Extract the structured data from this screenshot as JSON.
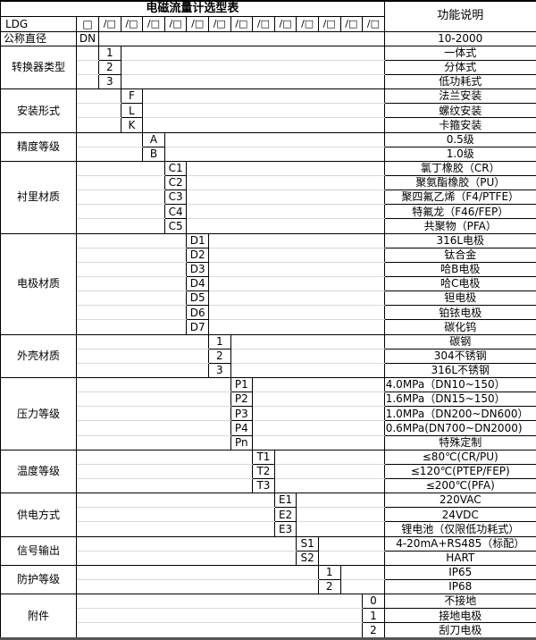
{
  "title": "电磁流量计选型表",
  "right_header": "功能说明",
  "colors": {
    "background": "#ffffff",
    "border": "#000000",
    "light_gridline": "#d9d9d9"
  },
  "model_row": {
    "prefix": "LDG",
    "first_code": "□",
    "code_cells": [
      "/□",
      "/□",
      "/□",
      "/□",
      "/□",
      "/□",
      "/□",
      "/□",
      "/□",
      "/□",
      "/□",
      "/□",
      "/□"
    ]
  },
  "groups": [
    {
      "label": "公称直径",
      "label_align": "left",
      "col": 0,
      "options": [
        {
          "code": "DN",
          "desc": "10-2000"
        }
      ]
    },
    {
      "label": "转换器类型",
      "col": 1,
      "options": [
        {
          "code": "1",
          "desc": "一体式"
        },
        {
          "code": "2",
          "desc": "分体式"
        },
        {
          "code": "3",
          "desc": "低功耗式"
        }
      ]
    },
    {
      "label": "安装形式",
      "col": 2,
      "options": [
        {
          "code": "F",
          "desc": "法兰安装"
        },
        {
          "code": "L",
          "desc": "螺纹安装"
        },
        {
          "code": "K",
          "desc": "卡箍安装"
        }
      ]
    },
    {
      "label": "精度等级",
      "col": 3,
      "options": [
        {
          "code": "A",
          "desc": "0.5级"
        },
        {
          "code": "B",
          "desc": "1.0级"
        }
      ]
    },
    {
      "label": "衬里材质",
      "col": 4,
      "options": [
        {
          "code": "C1",
          "desc": "氯丁橡胶（CR）"
        },
        {
          "code": "C2",
          "desc": "聚氨酯橡胶（PU）"
        },
        {
          "code": "C3",
          "desc": "聚四氟乙烯（F4/PTFE）"
        },
        {
          "code": "C4",
          "desc": "特氟龙（F46/FEP）"
        },
        {
          "code": "C5",
          "desc": "共聚物（PFA）"
        }
      ]
    },
    {
      "label": "电极材质",
      "col": 5,
      "options": [
        {
          "code": "D1",
          "desc": "316L电极"
        },
        {
          "code": "D2",
          "desc": "钛合金"
        },
        {
          "code": "D3",
          "desc": "哈B电极"
        },
        {
          "code": "D4",
          "desc": "哈C电极"
        },
        {
          "code": "D5",
          "desc": "钽电极"
        },
        {
          "code": "D6",
          "desc": "铂铱电极"
        },
        {
          "code": "D7",
          "desc": "碳化钨"
        }
      ]
    },
    {
      "label": "外壳材质",
      "col": 6,
      "options": [
        {
          "code": "1",
          "desc": "碳钢"
        },
        {
          "code": "2",
          "desc": "304不锈钢"
        },
        {
          "code": "3",
          "desc": "316L不锈钢"
        }
      ]
    },
    {
      "label": "压力等级",
      "col": 7,
      "options": [
        {
          "code": "P1",
          "desc": "4.0MPa（DN10~150）",
          "align": "left"
        },
        {
          "code": "P2",
          "desc": "1.6MPa（DN15~150）",
          "align": "left"
        },
        {
          "code": "P3",
          "desc": "1.0MPa（DN200~DN600）",
          "align": "left"
        },
        {
          "code": "P4",
          "desc": "0.6MPa(DN700~DN2000)",
          "align": "left"
        },
        {
          "code": "Pn",
          "desc": "特殊定制"
        }
      ]
    },
    {
      "label": "温度等级",
      "col": 8,
      "options": [
        {
          "code": "T1",
          "desc": "≤80℃(CR/PU)"
        },
        {
          "code": "T2",
          "desc": "≤120℃(PTEP/FEP)"
        },
        {
          "code": "T3",
          "desc": "≤200℃(PFA)"
        }
      ]
    },
    {
      "label": "供电方式",
      "col": 9,
      "options": [
        {
          "code": "E1",
          "desc": "220VAC"
        },
        {
          "code": "E2",
          "desc": "24VDC"
        },
        {
          "code": "E3",
          "desc": "锂电池（仅限低功耗式）"
        }
      ]
    },
    {
      "label": "信号输出",
      "col": 10,
      "options": [
        {
          "code": "S1",
          "desc": "4-20mA+RS485（标配）"
        },
        {
          "code": "S2",
          "desc": "HART"
        }
      ]
    },
    {
      "label": "防护等级",
      "col": 11,
      "options": [
        {
          "code": "1",
          "desc": "IP65"
        },
        {
          "code": "2",
          "desc": "IP68"
        }
      ]
    },
    {
      "label": "附件",
      "col": 13,
      "options": [
        {
          "code": "0",
          "desc": "不接地"
        },
        {
          "code": "1",
          "desc": "接地电极"
        },
        {
          "code": "2",
          "desc": "刮刀电极"
        }
      ]
    }
  ]
}
